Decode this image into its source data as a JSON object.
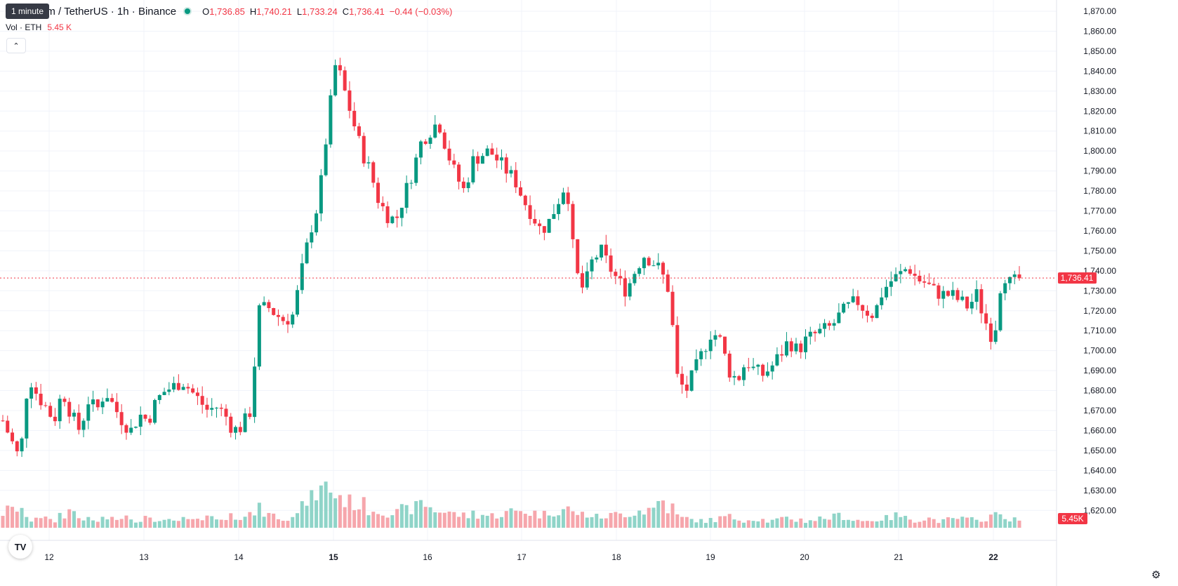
{
  "legend": {
    "title": "um / TetherUS · 1h · Binance",
    "o_label": "O",
    "o_value": "1,736.85",
    "h_label": "H",
    "h_value": "1,740.21",
    "l_label": "L",
    "l_value": "1,733.24",
    "c_label": "C",
    "c_value": "1,736.41",
    "change": "−0.44 (−0.03%)"
  },
  "tooltip": "1 minute",
  "volume": {
    "label": "Vol · ETH",
    "value": "5.45 K"
  },
  "colors": {
    "up": "#089981",
    "down": "#f23645",
    "vol_up": "#8fd4c8",
    "vol_down": "#f6a6ac",
    "grid": "#f0f3fa"
  },
  "icons": {
    "collapse": "chevron-up-icon",
    "logo": "tradingview-logo",
    "settings": "gear-icon"
  },
  "price_axis": {
    "labels": [
      "1,870.00",
      "1,860.00",
      "1,850.00",
      "1,840.00",
      "1,830.00",
      "1,820.00",
      "1,810.00",
      "1,800.00",
      "1,790.00",
      "1,780.00",
      "1,770.00",
      "1,760.00",
      "1,750.00",
      "1,740.00",
      "1,730.00",
      "1,720.00",
      "1,710.00",
      "1,700.00",
      "1,690.00",
      "1,680.00",
      "1,670.00",
      "1,660.00",
      "1,650.00",
      "1,640.00",
      "1,630.00",
      "1,620.00"
    ],
    "current_price": "1,736.41",
    "current_volume": "5.45K"
  },
  "time_axis": [
    "12",
    "13",
    "14",
    "15",
    "16",
    "17",
    "18",
    "19",
    "20",
    "21",
    "22"
  ],
  "chart_data": {
    "type": "candlestick",
    "ylim": [
      1615,
      1875
    ],
    "x_ticks": [
      "12",
      "13",
      "14",
      "15",
      "16",
      "17",
      "18",
      "19",
      "20",
      "21",
      "22"
    ],
    "close_path": [
      1665,
      1655,
      1645,
      1688,
      1678,
      1672,
      1665,
      1680,
      1668,
      1660,
      1675,
      1670,
      1680,
      1672,
      1665,
      1660,
      1668,
      1665,
      1675,
      1680,
      1682,
      1685,
      1680,
      1675,
      1670,
      1672,
      1668,
      1660,
      1662,
      1670,
      1720,
      1722,
      1718,
      1715,
      1718,
      1740,
      1760,
      1775,
      1812,
      1845,
      1830,
      1815,
      1800,
      1790,
      1775,
      1768,
      1765,
      1778,
      1790,
      1805,
      1810,
      1815,
      1800,
      1788,
      1780,
      1795,
      1798,
      1800,
      1795,
      1790,
      1785,
      1775,
      1768,
      1760,
      1765,
      1775,
      1785,
      1740,
      1730,
      1745,
      1750,
      1742,
      1735,
      1730,
      1740,
      1748,
      1745,
      1740,
      1730,
      1685,
      1680,
      1690,
      1700,
      1710,
      1705,
      1690,
      1685,
      1695,
      1690,
      1688,
      1692,
      1698,
      1705,
      1700,
      1705,
      1708,
      1710,
      1712,
      1718,
      1722,
      1725,
      1720,
      1718,
      1730,
      1735,
      1738,
      1742,
      1736,
      1734,
      1730,
      1728,
      1728,
      1725,
      1722,
      1728,
      1715,
      1705,
      1740,
      1733,
      1736
    ],
    "volume_path": [
      22,
      26,
      30,
      12,
      18,
      14,
      10,
      20,
      25,
      15,
      12,
      10,
      14,
      12,
      16,
      10,
      12,
      18,
      14,
      10,
      12,
      15,
      10,
      12,
      14,
      12,
      10,
      16,
      18,
      20,
      40,
      22,
      18,
      16,
      20,
      30,
      42,
      55,
      60,
      48,
      42,
      38,
      34,
      28,
      26,
      24,
      22,
      26,
      30,
      36,
      30,
      26,
      24,
      20,
      18,
      22,
      20,
      18,
      20,
      22,
      24,
      26,
      22,
      20,
      24,
      26,
      28,
      22,
      20,
      18,
      16,
      18,
      20,
      22,
      24,
      26,
      28,
      40,
      30,
      18,
      14,
      12,
      10,
      12,
      14,
      16,
      14,
      12,
      14,
      12,
      10,
      12,
      14,
      12,
      10,
      12,
      14,
      16,
      18,
      14,
      12,
      10,
      12,
      14,
      16,
      18,
      14,
      12,
      14,
      12,
      10,
      12,
      14,
      12,
      10,
      14,
      18,
      20,
      12,
      10
    ]
  }
}
